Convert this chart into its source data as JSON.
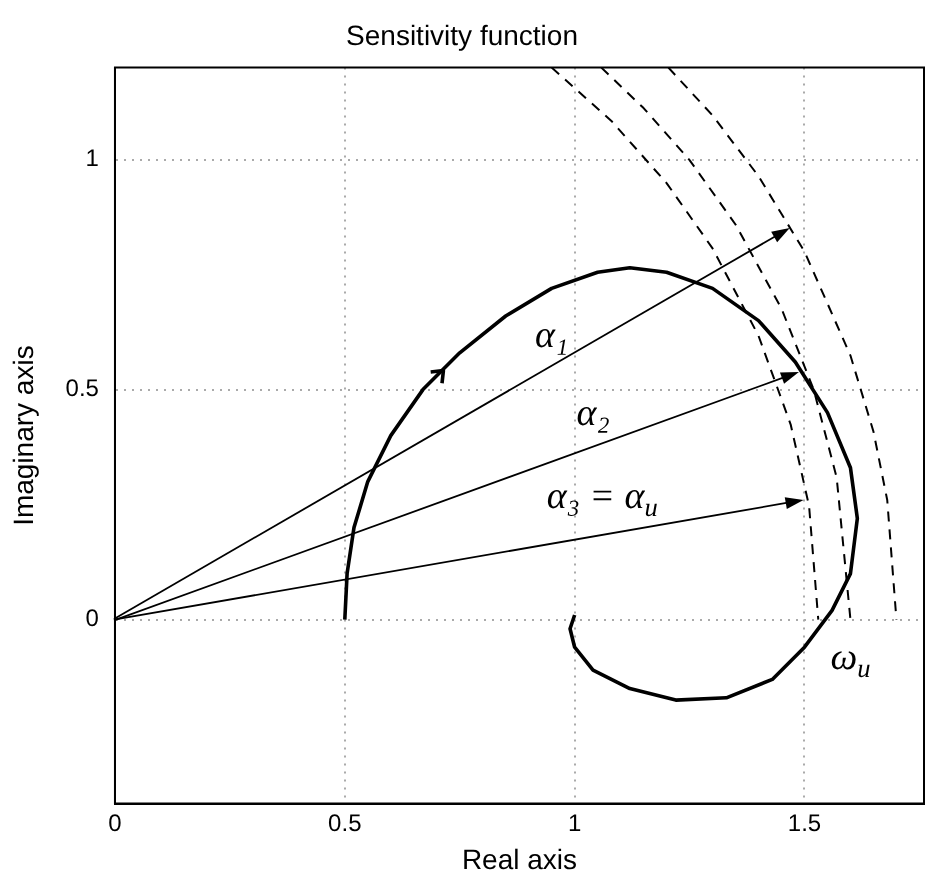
{
  "chart_data": {
    "type": "line",
    "title": "Sensitivity function",
    "xlabel": "Real axis",
    "ylabel": "Imaginary axis",
    "xlim": [
      0,
      1.76
    ],
    "ylim": [
      -0.4,
      1.2
    ],
    "xticks": [
      0,
      0.5,
      1,
      1.5
    ],
    "yticks": [
      0,
      0.5,
      1
    ],
    "grid": true,
    "legend": false,
    "marker": "none",
    "series": [
      {
        "color": "#000000",
        "line_style": "solid",
        "x": [
          0.5,
          0.505,
          0.52,
          0.55,
          0.6,
          0.67,
          0.75,
          0.85,
          0.95,
          1.05,
          1.12,
          1.2,
          1.3,
          1.4,
          1.48,
          1.55,
          1.6,
          1.615,
          1.6,
          1.56,
          1.5,
          1.43,
          1.33,
          1.22,
          1.12,
          1.04,
          1.0,
          0.99,
          1.0
        ],
        "values": [
          0,
          0.1,
          0.2,
          0.3,
          0.4,
          0.5,
          0.58,
          0.66,
          0.72,
          0.755,
          0.765,
          0.755,
          0.72,
          0.65,
          0.56,
          0.45,
          0.33,
          0.22,
          0.1,
          0.02,
          -0.06,
          -0.13,
          -0.17,
          -0.175,
          -0.15,
          -0.11,
          -0.06,
          -0.02,
          0.01
        ]
      },
      {
        "color": "#000000",
        "line_style": "dashed",
        "x": [
          0.95,
          1.08,
          1.2,
          1.3,
          1.4,
          1.47,
          1.51,
          1.53
        ],
        "values": [
          1.2,
          1.084,
          0.949,
          0.807,
          0.617,
          0.424,
          0.247,
          0
        ]
      },
      {
        "color": "#000000",
        "line_style": "dashed",
        "x": [
          1.058,
          1.15,
          1.25,
          1.35,
          1.45,
          1.52,
          1.57,
          1.6
        ],
        "values": [
          1.2,
          1.112,
          0.999,
          0.859,
          0.676,
          0.5,
          0.309,
          0
        ]
      },
      {
        "color": "#000000",
        "line_style": "dashed",
        "x": [
          1.204,
          1.3,
          1.4,
          1.5,
          1.6,
          1.65,
          1.68,
          1.7
        ],
        "values": [
          1.2,
          1.096,
          0.964,
          0.8,
          0.574,
          0.409,
          0.26,
          0
        ]
      }
    ],
    "annotations": [
      "α₁",
      "α₂",
      "α₃ = α$_{u}$",
      "ω$_{u}$"
    ]
  }
}
